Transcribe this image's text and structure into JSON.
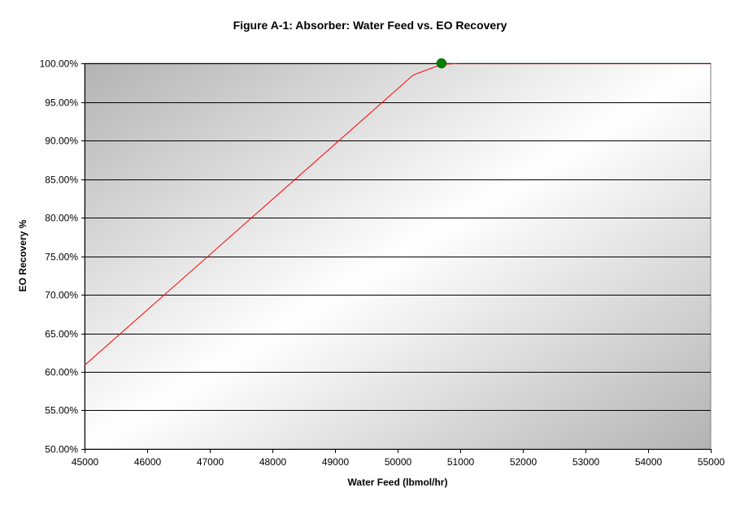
{
  "chart_data": {
    "type": "line",
    "title": "Figure A-1:  Absorber:  Water Feed vs. EO Recovery",
    "xlabel": "Water Feed (lbmol/hr)",
    "ylabel": "EO Recovery %",
    "xlim": [
      45000,
      55000
    ],
    "ylim": [
      0.5,
      1.0
    ],
    "x_ticks": [
      45000,
      46000,
      47000,
      48000,
      49000,
      50000,
      51000,
      52000,
      53000,
      54000,
      55000
    ],
    "x_tick_labels": [
      "45000",
      "46000",
      "47000",
      "48000",
      "49000",
      "50000",
      "51000",
      "52000",
      "53000",
      "54000",
      "55000"
    ],
    "y_ticks": [
      0.5,
      0.55,
      0.6,
      0.65,
      0.7,
      0.75,
      0.8,
      0.85,
      0.9,
      0.95,
      1.0
    ],
    "y_tick_labels": [
      "50.00%",
      "55.00%",
      "60.00%",
      "65.00%",
      "70.00%",
      "75.00%",
      "80.00%",
      "85.00%",
      "90.00%",
      "95.00%",
      "100.00%"
    ],
    "grid": "horizontal",
    "series": [
      {
        "color": "#ff0000",
        "x": [
          44950,
          50250,
          50700,
          51000,
          55050
        ],
        "y": [
          0.605,
          0.985,
          0.9985,
          1.0,
          1.0
        ]
      }
    ],
    "highlight_point": {
      "x": 50700,
      "y": 1.0,
      "color": "#008000"
    },
    "colors": {
      "plot_dark": "#b3b3b3",
      "plot_light": "#ffffff",
      "grid": "#000000"
    }
  }
}
